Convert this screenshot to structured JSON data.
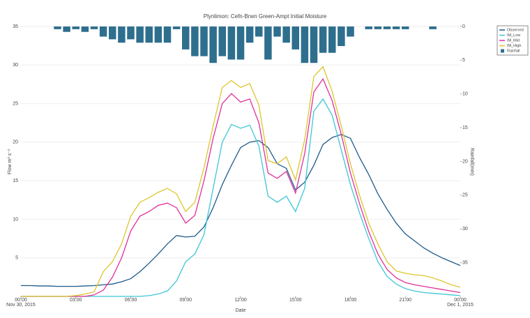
{
  "chart_data": {
    "type": "line",
    "title": "Plynlimon: Cefn-Brwn Green-Ampt Initial Moisture",
    "xlabel": "Date",
    "ylabel": "Flow m³ s⁻¹",
    "y2label": "Rainfall(mm)",
    "xlim": [
      0,
      24
    ],
    "xticks": [
      {
        "value": 0,
        "label": "00:00"
      },
      {
        "value": 3,
        "label": "03:00"
      },
      {
        "value": 6,
        "label": "06:00"
      },
      {
        "value": 9,
        "label": "09:00"
      },
      {
        "value": 12,
        "label": "12:00"
      },
      {
        "value": 15,
        "label": "15:00"
      },
      {
        "value": 18,
        "label": "18:00"
      },
      {
        "value": 21,
        "label": "21:00"
      },
      {
        "value": 24,
        "label": "00:00"
      }
    ],
    "xtick_dates": [
      {
        "value": 0,
        "label": "Nov 30, 2015"
      },
      {
        "value": 24,
        "label": "Dec 1, 2015"
      }
    ],
    "ylim": [
      0,
      35
    ],
    "yticks": [
      5,
      10,
      15,
      20,
      25,
      30,
      35
    ],
    "y2lim": [
      0,
      40
    ],
    "y2ticks": [
      0,
      5,
      10,
      15,
      20,
      25,
      30,
      35
    ],
    "y2_reversed": true,
    "grid": true,
    "legend": "right",
    "x": [
      0,
      0.5,
      1,
      1.5,
      2,
      2.5,
      3,
      3.5,
      4,
      4.5,
      5,
      5.5,
      6,
      6.5,
      7,
      7.5,
      8,
      8.5,
      9,
      9.5,
      10,
      10.5,
      11,
      11.5,
      12,
      12.5,
      13,
      13.5,
      14,
      14.5,
      15,
      15.5,
      16,
      16.5,
      17,
      17.5,
      18,
      18.5,
      19,
      19.5,
      20,
      20.5,
      21,
      21.5,
      22,
      22.5,
      23,
      23.5,
      24
    ],
    "series": [
      {
        "name": "Observed",
        "color": "#1f5a8a",
        "values": [
          1.4,
          1.4,
          1.35,
          1.35,
          1.3,
          1.3,
          1.3,
          1.35,
          1.4,
          1.5,
          1.6,
          1.9,
          2.3,
          3.2,
          4.3,
          5.5,
          6.8,
          7.9,
          7.7,
          7.8,
          9,
          11.5,
          14.5,
          17,
          19.3,
          20,
          20.2,
          19.3,
          17.2,
          16.6,
          13.8,
          14.8,
          17,
          19.7,
          20.6,
          21,
          20.5,
          18,
          15.8,
          13.3,
          11.3,
          9.5,
          8.1,
          7.2,
          6.3,
          5.6,
          5,
          4.5,
          4
        ]
      },
      {
        "name": "IM_Low",
        "color": "#3cc6d6",
        "values": [
          0,
          0,
          0,
          0,
          0,
          0,
          0,
          0,
          0,
          0,
          0,
          0,
          0,
          0,
          0.1,
          0.3,
          0.7,
          2,
          4.5,
          5.5,
          8,
          14,
          20,
          22.3,
          21.8,
          22.2,
          19.5,
          13,
          12.2,
          13,
          11,
          14,
          24,
          25.6,
          23.5,
          19,
          14.5,
          10.8,
          7.5,
          4.5,
          2.6,
          1.6,
          1,
          0.7,
          0.5,
          0.4,
          0.3,
          0.2,
          0.1
        ]
      },
      {
        "name": "IM_Mid",
        "color": "#e0309a",
        "values": [
          0,
          0,
          0,
          0,
          0,
          0,
          0,
          0,
          0.2,
          0.8,
          2.5,
          5,
          8.5,
          10.4,
          11,
          11.8,
          12.1,
          11.5,
          9.5,
          10.5,
          15,
          20.5,
          25,
          26.3,
          25.2,
          25.6,
          22.5,
          16,
          15.3,
          16.2,
          13.4,
          18.5,
          26.5,
          28.2,
          25.4,
          21,
          16,
          12,
          8.4,
          5.5,
          3.5,
          2.4,
          1.8,
          1.5,
          1.3,
          1.1,
          0.9,
          0.7,
          0.5
        ]
      },
      {
        "name": "IM_High",
        "color": "#dcc62c",
        "values": [
          0,
          0,
          0,
          0,
          0,
          0,
          0.1,
          0.3,
          0.6,
          3.2,
          4.5,
          6.8,
          10.4,
          12.2,
          12.8,
          13.5,
          14,
          13.3,
          11,
          12.2,
          16.7,
          22.1,
          27.1,
          28,
          27.1,
          27.6,
          24.8,
          17.6,
          17.2,
          18.1,
          15.1,
          20.3,
          28.5,
          29.8,
          26.6,
          22.1,
          17.2,
          13.1,
          9.5,
          6.8,
          4.5,
          3.3,
          3,
          2.8,
          2.7,
          2.4,
          2,
          1.5,
          1.2
        ]
      }
    ],
    "rainfall": {
      "name": "Rainfall",
      "type": "bar",
      "axis": "y2",
      "color": "#2e6f8e",
      "x": [
        2,
        2.5,
        3,
        3.5,
        4,
        4.5,
        5,
        5.5,
        6,
        6.5,
        7,
        7.5,
        8,
        8.5,
        9,
        9.5,
        10,
        10.5,
        11,
        11.5,
        12,
        12.5,
        13,
        13.5,
        14,
        14.5,
        15,
        15.5,
        16,
        16.5,
        17,
        17.5,
        18,
        19,
        19.5,
        20,
        20.5,
        21,
        22.5
      ],
      "values": [
        0.4,
        0.8,
        0.4,
        0.8,
        0.4,
        1.5,
        1.9,
        2.4,
        1.9,
        2.4,
        2.4,
        2.4,
        2.4,
        0.4,
        3.4,
        4.4,
        4.4,
        5.4,
        4.4,
        4.9,
        4.9,
        2.4,
        1.5,
        4.9,
        1.5,
        2.4,
        3.4,
        5.4,
        5.4,
        3.9,
        3.9,
        2.9,
        1.5,
        0.4,
        0.4,
        0.4,
        0.4,
        0.4,
        0.4
      ]
    }
  }
}
